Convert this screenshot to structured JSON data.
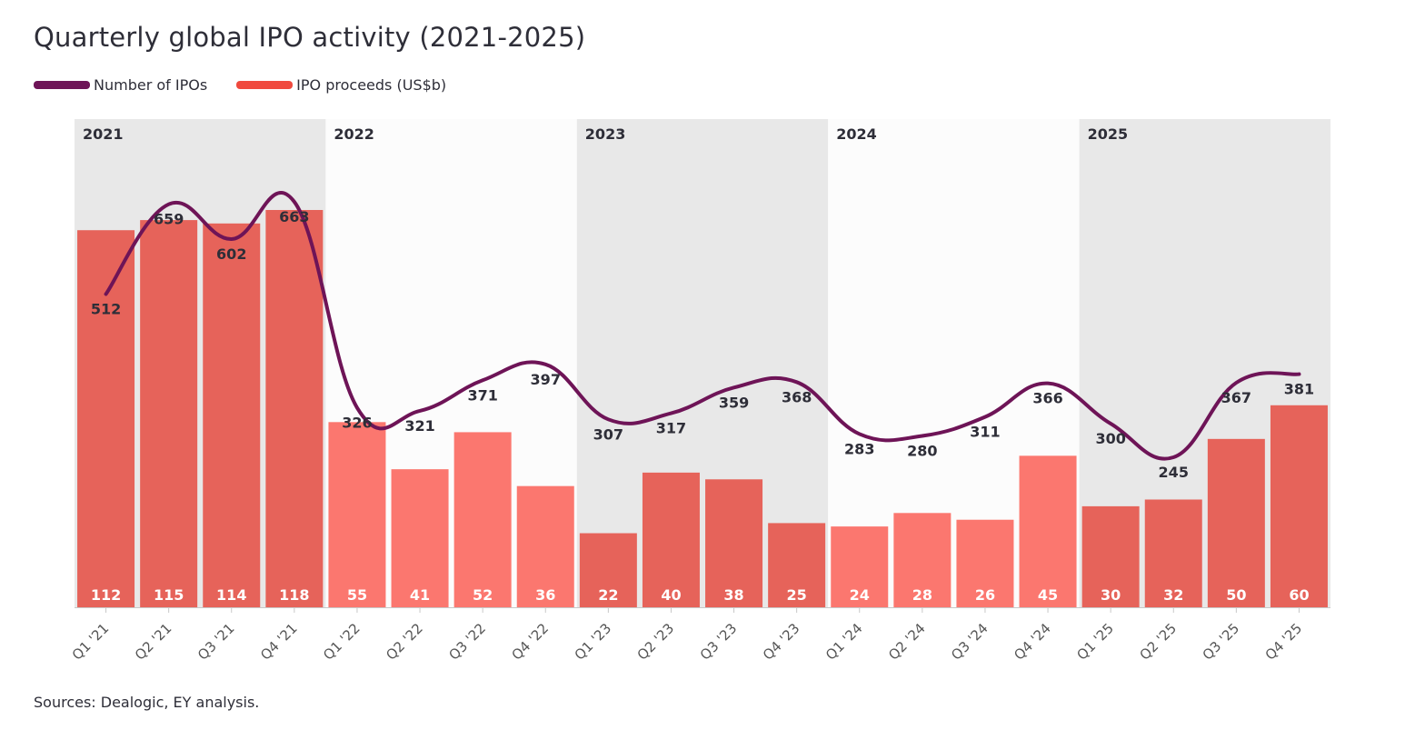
{
  "title": "Quarterly global IPO activity (2021-2025)",
  "legend": {
    "line_label": "Number of IPOs",
    "bar_label": "IPO proceeds (US$b)"
  },
  "colors": {
    "line": "#6e1457",
    "legend_bar": "#f04a3e",
    "bar_dark": "#e6635a",
    "bar_light": "#fb776f",
    "band_dark": "#e8e8e8",
    "band_light": "#fcfcfc"
  },
  "source": "Sources: Dealogic, EY analysis.",
  "chart_data": {
    "type": "bar",
    "title": "Quarterly global IPO activity (2021-2025)",
    "categories": [
      "Q1 '21",
      "Q2 '21",
      "Q3 '21",
      "Q4 '21",
      "Q1 '22",
      "Q2 '22",
      "Q3 '22",
      "Q4 '22",
      "Q1 '23",
      "Q2 '23",
      "Q3 '23",
      "Q4 '23",
      "Q1 '24",
      "Q2 '24",
      "Q3 '24",
      "Q4 '24",
      "Q1 '25",
      "Q2 '25",
      "Q3 '25",
      "Q4 '25"
    ],
    "years": [
      "2021",
      "2022",
      "2023",
      "2024",
      "2025"
    ],
    "series": [
      {
        "name": "IPO proceeds (US$b)",
        "type": "bar",
        "values": [
          112,
          115,
          114,
          118,
          55,
          41,
          52,
          36,
          22,
          40,
          38,
          25,
          24,
          28,
          26,
          45,
          30,
          32,
          50,
          60
        ]
      },
      {
        "name": "Number of IPOs",
        "type": "line",
        "values": [
          512,
          659,
          602,
          663,
          326,
          321,
          371,
          397,
          307,
          317,
          359,
          368,
          283,
          280,
          311,
          366,
          300,
          245,
          367,
          381
        ]
      }
    ],
    "bar_shade": [
      "dark",
      "dark",
      "dark",
      "dark",
      "light",
      "light",
      "light",
      "light",
      "dark",
      "dark",
      "dark",
      "dark",
      "light",
      "light",
      "light",
      "light",
      "dark",
      "dark",
      "dark",
      "dark"
    ],
    "xlabel": "",
    "ylabel": "",
    "ylim_bars": [
      0,
      145
    ],
    "ylim_line": [
      0,
      1000
    ]
  }
}
